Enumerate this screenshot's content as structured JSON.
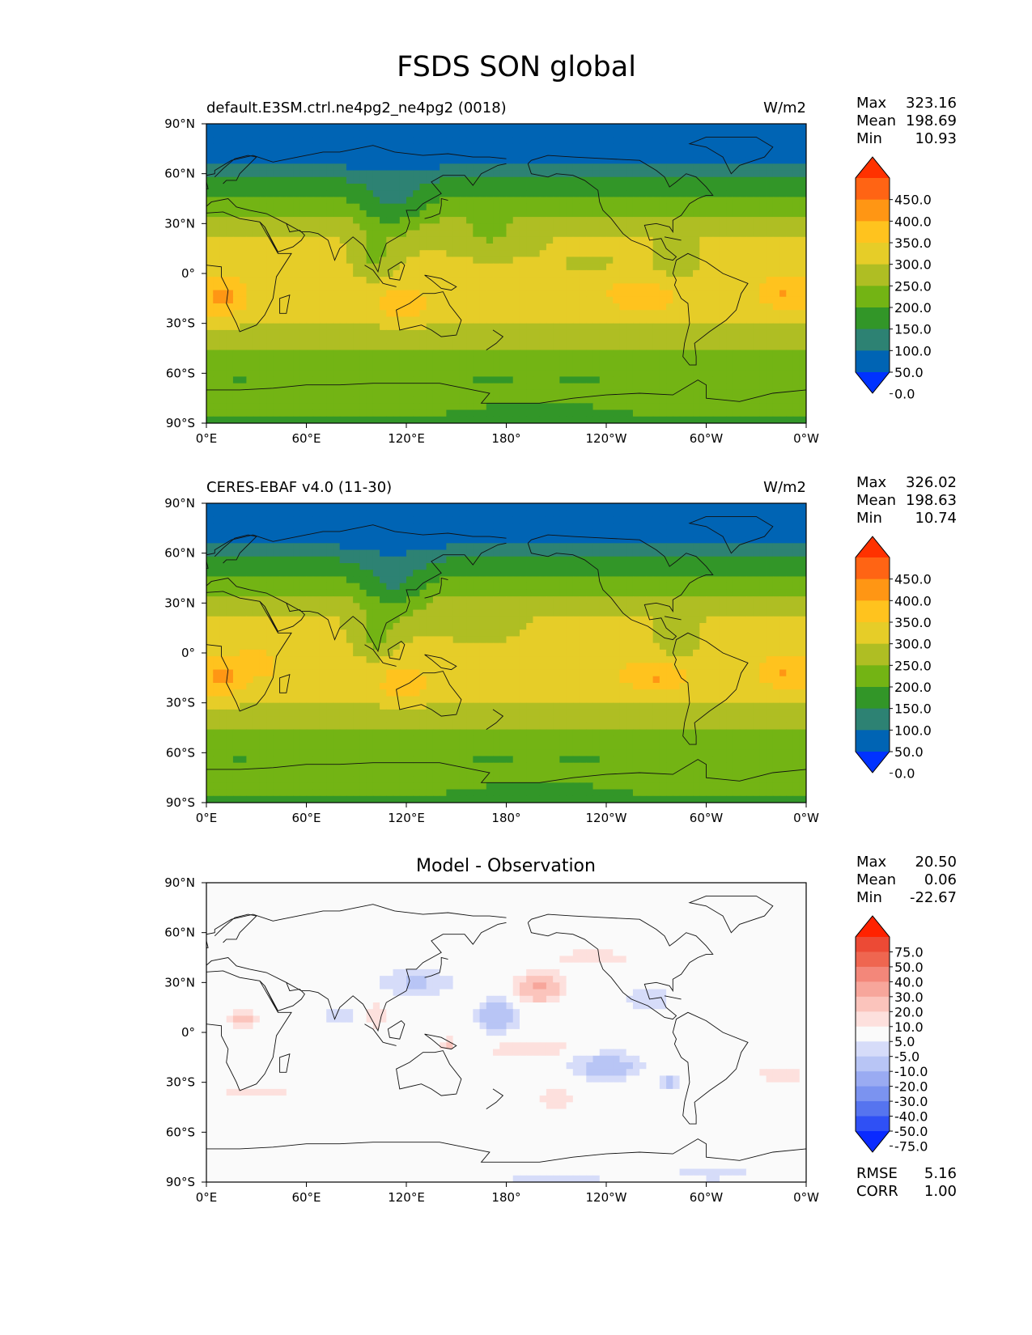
{
  "figure": {
    "title": "FSDS SON global"
  },
  "colors": {
    "land_outline": "#111111",
    "frame": "#000000",
    "field_levels": [
      "#0032ff",
      "#0064b4",
      "#2d8273",
      "#329628",
      "#73b414",
      "#afbe23",
      "#e6cd28",
      "#ffc31e",
      "#ff9614",
      "#ff6414",
      "#ff3200"
    ],
    "diff_levels": [
      "#0a2aff",
      "#2f50f5",
      "#5674ef",
      "#7b93f0",
      "#9aabf2",
      "#b8c5f5",
      "#d6dcf9",
      "#fafafa",
      "#fde0dd",
      "#fbc4bc",
      "#f7a69b",
      "#f3877a",
      "#ef6650",
      "#ec4a35",
      "#ff2200"
    ]
  },
  "chart_data": [
    {
      "type": "heatmap",
      "name": "model",
      "title": "default.E3SM.ctrl.ne4pg2_ne4pg2 (0018)",
      "units": "W/m2",
      "x_ticks": [
        "0°E",
        "60°E",
        "120°E",
        "180°",
        "120°W",
        "60°W",
        "0°W"
      ],
      "y_ticks": [
        "90°N",
        "60°N",
        "30°N",
        "0°",
        "30°S",
        "60°S",
        "90°S"
      ],
      "xlim": [
        0,
        360
      ],
      "ylim": [
        -90,
        90
      ],
      "stats": {
        "max_label": "Max",
        "max": "323.16",
        "mean_label": "Mean",
        "mean": "198.69",
        "min_label": "Min",
        "min": "10.93"
      },
      "colorbar": {
        "levels": [
          0,
          50,
          100,
          150,
          200,
          250,
          300,
          350,
          400,
          450
        ],
        "tick_labels": [
          "450.0",
          "400.0",
          "350.0",
          "300.0",
          "250.0",
          "200.0",
          "150.0",
          "100.0",
          "50.0",
          "0.0"
        ],
        "extend": "both"
      },
      "zonal_pattern": [
        [
          -90,
          140
        ],
        [
          -78,
          175
        ],
        [
          -70,
          185
        ],
        [
          -62,
          180
        ],
        [
          -55,
          175
        ],
        [
          -45,
          205
        ],
        [
          -35,
          235
        ],
        [
          -25,
          265
        ],
        [
          -12,
          285
        ],
        [
          0,
          275
        ],
        [
          10,
          265
        ],
        [
          20,
          255
        ],
        [
          30,
          225
        ],
        [
          40,
          175
        ],
        [
          50,
          135
        ],
        [
          58,
          95
        ],
        [
          65,
          45
        ],
        [
          75,
          25
        ],
        [
          90,
          15
        ]
      ],
      "regional_features": [
        {
          "lon": 10,
          "lat": -15,
          "dlon": 12,
          "dlat": 12,
          "value": 90
        },
        {
          "lon": 118,
          "lat": -20,
          "dlon": 14,
          "dlat": 10,
          "value": 60
        },
        {
          "lon": 262,
          "lat": -15,
          "dlon": 18,
          "dlat": 10,
          "value": 70
        },
        {
          "lon": 345,
          "lat": -12,
          "dlon": 12,
          "dlat": 10,
          "value": 65
        },
        {
          "lon": 112,
          "lat": 38,
          "dlon": 20,
          "dlat": 22,
          "value": -75
        },
        {
          "lon": 170,
          "lat": 20,
          "dlon": 25,
          "dlat": 12,
          "value": -55
        },
        {
          "lon": 100,
          "lat": 8,
          "dlon": 12,
          "dlat": 14,
          "value": -70
        },
        {
          "lon": 283,
          "lat": 5,
          "dlon": 14,
          "dlat": 14,
          "value": -45
        },
        {
          "lon": 230,
          "lat": 5,
          "dlon": 30,
          "dlat": 7,
          "value": -25
        },
        {
          "lon": 170,
          "lat": -65,
          "dlon": 25,
          "dlat": 5,
          "value": -40
        },
        {
          "lon": 225,
          "lat": -64,
          "dlon": 22,
          "dlat": 5,
          "value": -40
        },
        {
          "lon": 20,
          "lat": -63,
          "dlon": 10,
          "dlat": 4,
          "value": -40
        },
        {
          "lon": 200,
          "lat": -85,
          "dlon": 40,
          "dlat": 8,
          "value": -50
        }
      ]
    },
    {
      "type": "heatmap",
      "name": "observation",
      "title": "CERES-EBAF v4.0 (11-30)",
      "units": "W/m2",
      "x_ticks": [
        "0°E",
        "60°E",
        "120°E",
        "180°",
        "120°W",
        "60°W",
        "0°W"
      ],
      "y_ticks": [
        "90°N",
        "60°N",
        "30°N",
        "0°",
        "30°S",
        "60°S",
        "90°S"
      ],
      "xlim": [
        0,
        360
      ],
      "ylim": [
        -90,
        90
      ],
      "stats": {
        "max_label": "Max",
        "max": "326.02",
        "mean_label": "Mean",
        "mean": "198.63",
        "min_label": "Min",
        "min": "10.74"
      },
      "colorbar": {
        "levels": [
          0,
          50,
          100,
          150,
          200,
          250,
          300,
          350,
          400,
          450
        ],
        "tick_labels": [
          "450.0",
          "400.0",
          "350.0",
          "300.0",
          "250.0",
          "200.0",
          "150.0",
          "100.0",
          "50.0",
          "0.0"
        ],
        "extend": "both"
      },
      "zonal_pattern": [
        [
          -90,
          140
        ],
        [
          -78,
          175
        ],
        [
          -70,
          185
        ],
        [
          -62,
          180
        ],
        [
          -55,
          175
        ],
        [
          -45,
          205
        ],
        [
          -35,
          235
        ],
        [
          -25,
          265
        ],
        [
          -12,
          285
        ],
        [
          0,
          275
        ],
        [
          10,
          265
        ],
        [
          20,
          255
        ],
        [
          30,
          225
        ],
        [
          40,
          175
        ],
        [
          50,
          135
        ],
        [
          58,
          95
        ],
        [
          65,
          45
        ],
        [
          75,
          25
        ],
        [
          90,
          15
        ]
      ],
      "regional_features": [
        {
          "lon": 10,
          "lat": -15,
          "dlon": 12,
          "dlat": 12,
          "value": 90
        },
        {
          "lon": 118,
          "lat": -20,
          "dlon": 14,
          "dlat": 10,
          "value": 60
        },
        {
          "lon": 270,
          "lat": -15,
          "dlon": 18,
          "dlat": 10,
          "value": 75
        },
        {
          "lon": 345,
          "lat": -12,
          "dlon": 12,
          "dlat": 10,
          "value": 65
        },
        {
          "lon": 30,
          "lat": -5,
          "dlon": 12,
          "dlat": 10,
          "value": 40
        },
        {
          "lon": 112,
          "lat": 38,
          "dlon": 20,
          "dlat": 25,
          "value": -80
        },
        {
          "lon": 165,
          "lat": 12,
          "dlon": 25,
          "dlat": 12,
          "value": -30
        },
        {
          "lon": 100,
          "lat": 8,
          "dlon": 12,
          "dlat": 14,
          "value": -70
        },
        {
          "lon": 283,
          "lat": 5,
          "dlon": 14,
          "dlat": 14,
          "value": -50
        },
        {
          "lon": 170,
          "lat": -65,
          "dlon": 25,
          "dlat": 5,
          "value": -40
        },
        {
          "lon": 225,
          "lat": -64,
          "dlon": 22,
          "dlat": 5,
          "value": -40
        },
        {
          "lon": 20,
          "lat": -63,
          "dlon": 10,
          "dlat": 4,
          "value": -40
        },
        {
          "lon": 200,
          "lat": -85,
          "dlon": 40,
          "dlat": 8,
          "value": -50
        }
      ]
    },
    {
      "type": "heatmap",
      "name": "difference",
      "title": "Model - Observation",
      "x_ticks": [
        "0°E",
        "60°E",
        "120°E",
        "180°",
        "120°W",
        "60°W",
        "0°W"
      ],
      "y_ticks": [
        "90°N",
        "60°N",
        "30°N",
        "0°",
        "30°S",
        "60°S",
        "90°S"
      ],
      "xlim": [
        0,
        360
      ],
      "ylim": [
        -90,
        90
      ],
      "stats": {
        "max_label": "Max",
        "max": "20.50",
        "mean_label": "Mean",
        "mean": "0.06",
        "min_label": "Min",
        "min": "-22.67",
        "rmse_label": "RMSE",
        "rmse": "5.16",
        "corr_label": "CORR",
        "corr": "1.00"
      },
      "colorbar": {
        "levels": [
          -75,
          -50,
          -40,
          -30,
          -20,
          -10,
          -5,
          5,
          10,
          20,
          30,
          40,
          50,
          75
        ],
        "tick_labels": [
          "75.0",
          "50.0",
          "40.0",
          "30.0",
          "20.0",
          "10.0",
          "5.0",
          "-5.0",
          "-10.0",
          "-20.0",
          "-30.0",
          "-40.0",
          "-50.0",
          "-75.0"
        ],
        "extend": "both"
      },
      "regional_features": [
        {
          "lon": 200,
          "lat": 27,
          "dlon": 14,
          "dlat": 9,
          "value": 22
        },
        {
          "lon": 232,
          "lat": 45,
          "dlon": 25,
          "dlat": 5,
          "value": 9
        },
        {
          "lon": 195,
          "lat": -10,
          "dlon": 28,
          "dlat": 5,
          "value": 11
        },
        {
          "lon": 22,
          "lat": 8,
          "dlon": 10,
          "dlat": 7,
          "value": 13
        },
        {
          "lon": 102,
          "lat": 10,
          "dlon": 6,
          "dlat": 8,
          "value": 10
        },
        {
          "lon": 345,
          "lat": -25,
          "dlon": 15,
          "dlat": 6,
          "value": 10
        },
        {
          "lon": 30,
          "lat": -35,
          "dlon": 30,
          "dlat": 4,
          "value": 8
        },
        {
          "lon": 210,
          "lat": -40,
          "dlon": 12,
          "dlat": 6,
          "value": 9
        },
        {
          "lon": 145,
          "lat": -7,
          "dlon": 5,
          "dlat": 4,
          "value": 12
        },
        {
          "lon": 125,
          "lat": 30,
          "dlon": 25,
          "dlat": 9,
          "value": -11
        },
        {
          "lon": 175,
          "lat": 10,
          "dlon": 13,
          "dlat": 10,
          "value": -18
        },
        {
          "lon": 265,
          "lat": 20,
          "dlon": 14,
          "dlat": 8,
          "value": -10
        },
        {
          "lon": 240,
          "lat": -20,
          "dlon": 22,
          "dlat": 9,
          "value": -15
        },
        {
          "lon": 278,
          "lat": -30,
          "dlon": 8,
          "dlat": 5,
          "value": -12
        },
        {
          "lon": 80,
          "lat": 10,
          "dlon": 12,
          "dlat": 6,
          "value": -9
        },
        {
          "lon": 210,
          "lat": -88,
          "dlon": 40,
          "dlat": 4,
          "value": -8
        },
        {
          "lon": 305,
          "lat": -85,
          "dlon": 28,
          "dlat": 4,
          "value": -9
        }
      ]
    }
  ]
}
